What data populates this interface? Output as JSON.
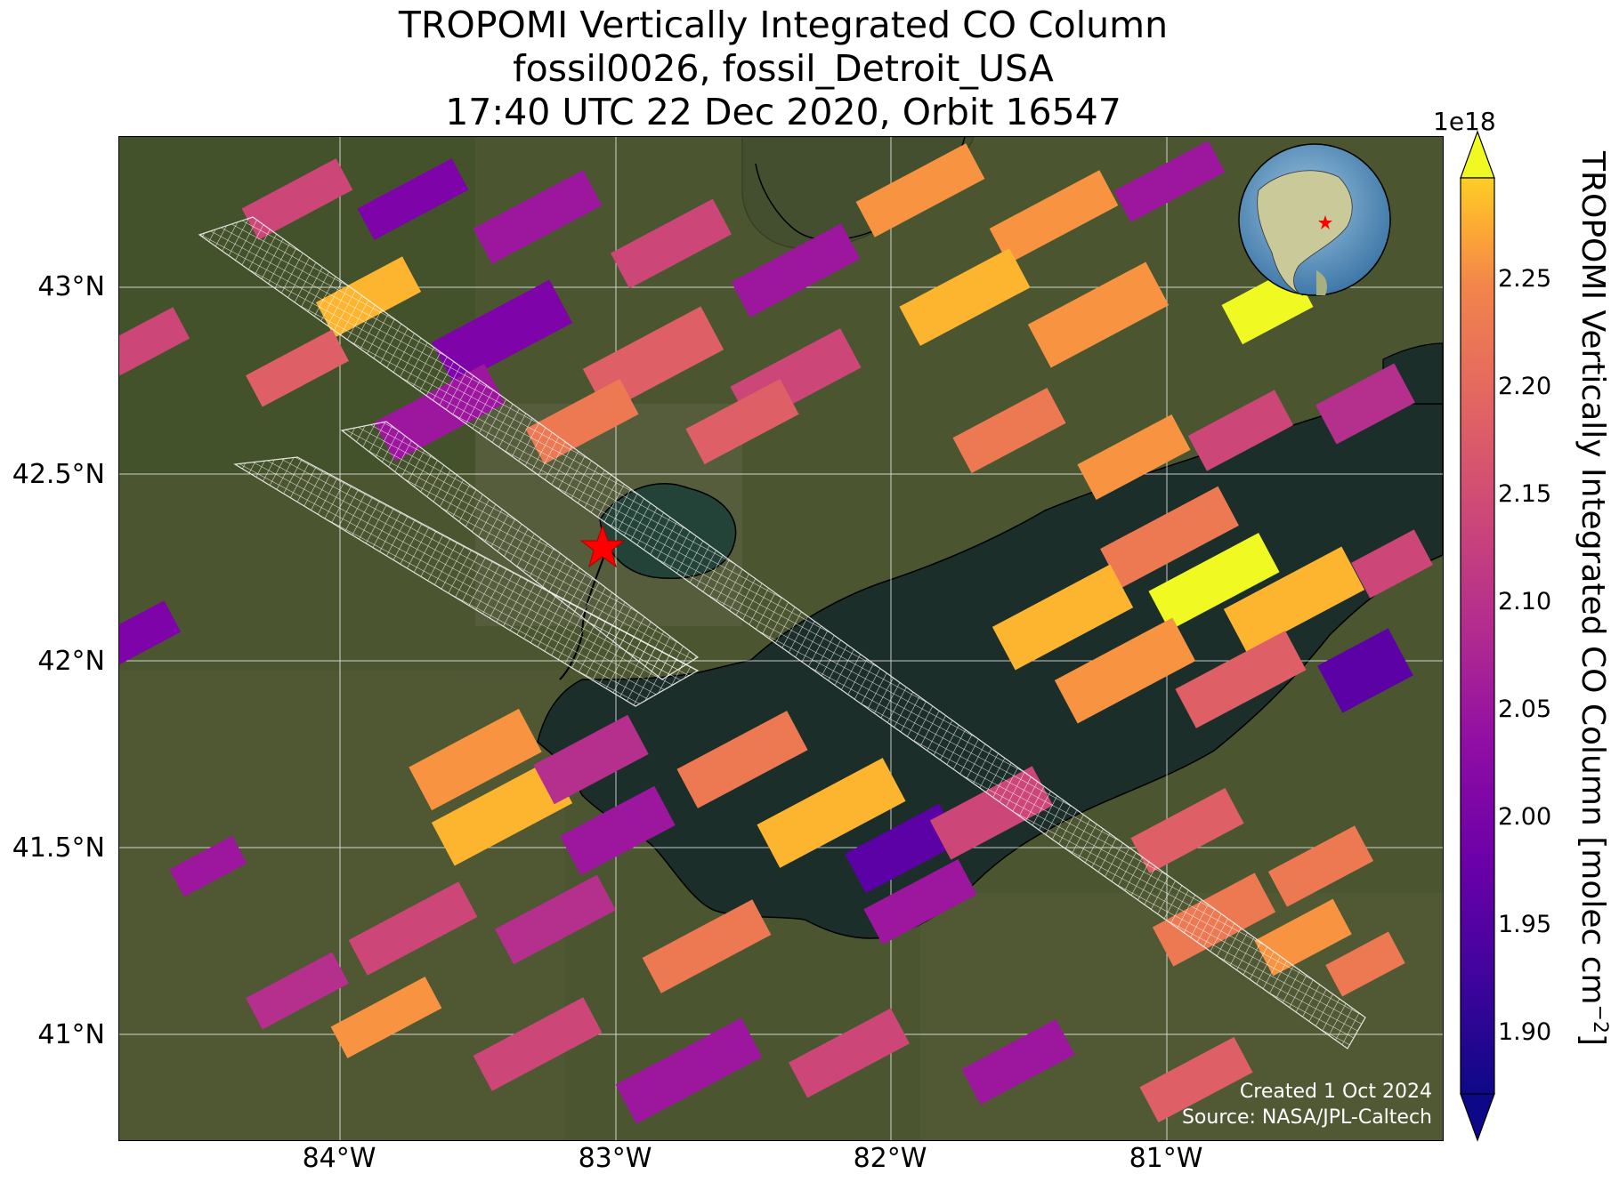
{
  "title": {
    "line1": "TROPOMI Vertically Integrated CO Column",
    "line2": "fossil0026, fossil_Detroit_USA",
    "line3": "17:40 UTC 22 Dec 2020, Orbit 16547"
  },
  "axes": {
    "lat_ticks": [
      "43°N",
      "42.5°N",
      "42°N",
      "41.5°N",
      "41°N"
    ],
    "lon_ticks": [
      "84°W",
      "83°W",
      "82°W",
      "81°W"
    ]
  },
  "colorbar": {
    "exponent": "1e18",
    "label_main": "TROPOMI Vertically Integrated CO Column [molec cm",
    "label_sup": "−2",
    "label_end": "]",
    "ticks": [
      "2.25",
      "2.20",
      "2.15",
      "2.10",
      "2.05",
      "2.00",
      "1.95",
      "1.90"
    ],
    "colormap": "plasma",
    "range": [
      1.87,
      2.29
    ],
    "extend": "both"
  },
  "credits": {
    "line1": "Created 1 Oct 2024",
    "line2": "Source: NASA/JPL-Caltech"
  },
  "map": {
    "extent_lon": [
      -84.8,
      -80.0
    ],
    "extent_lat": [
      40.7,
      43.4
    ],
    "target_marker": "red-star",
    "target_location": [
      -83.05,
      42.33
    ],
    "background": "satellite-imagery",
    "inset": "orthographic-globe-north-america"
  },
  "colors": {
    "target": "#ff0000",
    "grid": "#ffffff",
    "coastline": "#000000",
    "lake": "#1a2b26",
    "land": "#4a5530"
  }
}
